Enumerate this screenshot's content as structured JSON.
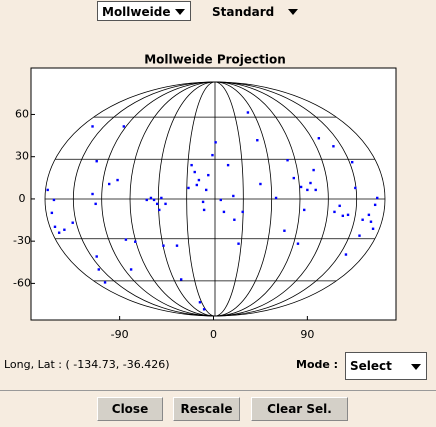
{
  "toolbar": {
    "projection": "Mollweide",
    "style": "Standard"
  },
  "chart_data": {
    "type": "scatter",
    "title": "Mollweide Projection",
    "color": "#0000ff",
    "x": [
      -116,
      -86,
      -112,
      -92,
      -159,
      -155,
      -152,
      -148,
      -143,
      -135,
      -153,
      -116,
      -113,
      -100,
      -110,
      -104,
      -112,
      -84,
      -79,
      -75,
      -64,
      -60,
      -57,
      -54,
      -52,
      -50,
      -46,
      -48,
      -35,
      -31,
      -24,
      -21,
      -18,
      -16,
      -14,
      -10,
      -9,
      -7,
      -5,
      -1,
      2,
      -13,
      -9,
      7,
      10,
      14,
      19,
      20,
      24,
      28,
      33,
      42,
      45,
      60,
      68,
      71,
      77,
      81,
      84,
      90,
      93,
      96,
      98,
      87,
      101,
      116,
      121,
      124,
      129,
      133,
      136,
      140,
      143,
      149,
      151,
      155,
      157,
      153,
      127,
      115
    ],
    "y": [
      51.5,
      51.5,
      26.8,
      13.4,
      6.4,
      -9.9,
      -19.8,
      -24.0,
      -21.9,
      -16.9,
      -0.7,
      3.5,
      -3.5,
      10.6,
      -50.1,
      -59.3,
      -40.9,
      -28.9,
      -50.1,
      -30.4,
      -0.7,
      0.7,
      -0.7,
      -3.5,
      -7.8,
      0.7,
      -3.5,
      -33.2,
      -33.2,
      -57.2,
      7.8,
      24.0,
      19.1,
      9.9,
      13.4,
      -2.1,
      -7.8,
      6.4,
      16.9,
      31.1,
      40.2,
      -73.4,
      -78.4,
      -0.7,
      -9.2,
      24.0,
      2.1,
      -14.8,
      -31.8,
      -9.2,
      61.4,
      41.7,
      10.6,
      0.7,
      -22.6,
      27.5,
      14.8,
      -31.8,
      8.5,
      6.4,
      11.3,
      20.5,
      6.4,
      -7.8,
      43.1,
      -9.2,
      -4.9,
      -12.0,
      -11.3,
      26.1,
      7.8,
      -26.1,
      -14.8,
      -11.3,
      -16.2,
      -4.2,
      0.7,
      -21.2,
      -39.5,
      37.4
    ],
    "xlim": [
      -175,
      175
    ],
    "ylim": [
      -86,
      93
    ],
    "xticks": [
      -90,
      0,
      90
    ],
    "yticks": [
      -60,
      -30,
      0,
      30,
      60
    ]
  },
  "status": {
    "label": "Long, Lat :",
    "coords": "( -134.73,  -36.426)"
  },
  "mode": {
    "label": "Mode :",
    "value": "Select"
  },
  "buttons": [
    "Close",
    "Rescale",
    "Clear Sel."
  ]
}
